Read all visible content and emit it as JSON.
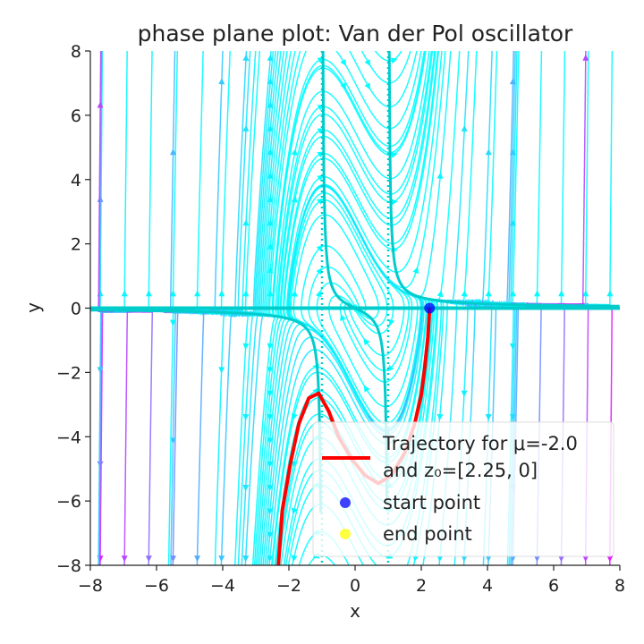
{
  "chart_data": {
    "type": "streamplot",
    "title": "phase plane plot: Van der Pol oscillator",
    "xlabel": "x",
    "ylabel": "y",
    "xlim": [
      -8,
      8
    ],
    "ylim": [
      -8,
      8
    ],
    "xticks": [
      -8,
      -6,
      -4,
      -2,
      0,
      2,
      4,
      6,
      8
    ],
    "yticks": [
      -8,
      -6,
      -4,
      -2,
      0,
      2,
      4,
      6,
      8
    ],
    "xtick_labels": [
      "−8",
      "−6",
      "−4",
      "−2",
      "0",
      "2",
      "4",
      "6",
      "8"
    ],
    "ytick_labels": [
      "−8",
      "−6",
      "−4",
      "−2",
      "0",
      "2",
      "4",
      "6",
      "8"
    ],
    "grid": false,
    "mu": -2.0,
    "initial_state": [
      2.25,
      0
    ],
    "vector_field": "dx/dt = y, dy/dt = mu*(1 - x^2)*y - x",
    "colormap": "cool (cyan at low speed, magenta at high speed)",
    "nullclines": {
      "x_eq_minus_1": -1,
      "x_eq_plus_1": 1,
      "style": "dotted",
      "color": "#00cccc"
    },
    "series": [
      {
        "name": "Trajectory",
        "color": "#ff0000",
        "x": [
          2.25,
          2.2,
          2.1,
          2.0,
          1.8,
          1.5,
          1.1,
          0.7,
          0.3,
          -0.1,
          -0.5,
          -0.8,
          -1.1,
          -1.4,
          -1.7,
          -1.95,
          -2.2,
          -2.32
        ],
        "y": [
          0,
          -0.9,
          -1.9,
          -2.7,
          -3.6,
          -4.5,
          -5.2,
          -5.45,
          -5.2,
          -4.7,
          -4.0,
          -3.2,
          -2.65,
          -2.8,
          -3.6,
          -4.8,
          -6.3,
          -8.0
        ]
      }
    ],
    "points": [
      {
        "name": "start point",
        "x": 2.25,
        "y": 0,
        "color": "#0000ff"
      },
      {
        "name": "end point",
        "x": null,
        "y": null,
        "color": "#ffff00"
      }
    ],
    "legend": {
      "position": "lower-right",
      "entries": [
        {
          "kind": "line",
          "color": "#ff0000",
          "label_line1": "Trajectory for μ=-2.0",
          "label_line2": "and z₀=[2.25, 0]"
        },
        {
          "kind": "marker",
          "color": "#0000ff",
          "label": "start point"
        },
        {
          "kind": "marker",
          "color": "#ffff00",
          "label": "end point"
        }
      ]
    }
  }
}
